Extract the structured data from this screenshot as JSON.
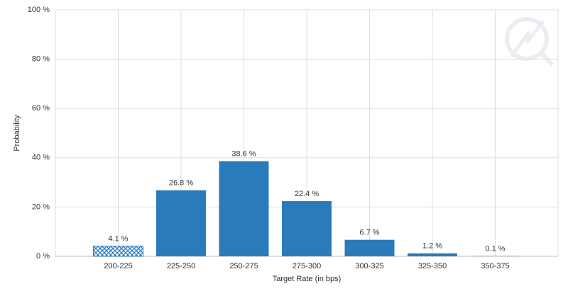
{
  "chart_data": {
    "type": "bar",
    "x_label": "Target Rate (in bps)",
    "y_label": "Probability",
    "categories": [
      "200-225",
      "225-250",
      "250-275",
      "275-300",
      "300-325",
      "325-350",
      "350-375"
    ],
    "values": [
      4.1,
      26.8,
      38.6,
      22.4,
      6.7,
      1.2,
      0.1
    ],
    "value_labels": [
      "4.1 %",
      "26.8 %",
      "38.6 %",
      "22.4 %",
      "6.7 %",
      "1.2 %",
      "0.1 %"
    ],
    "hatch": [
      true,
      false,
      false,
      false,
      false,
      false,
      false
    ],
    "color": "#2b7bba",
    "ylim": [
      0,
      100
    ],
    "yticks": [
      {
        "value": 0,
        "label": "0 %"
      },
      {
        "value": 20,
        "label": "20 %"
      },
      {
        "value": 40,
        "label": "40 %"
      },
      {
        "value": 60,
        "label": "60 %"
      },
      {
        "value": 80,
        "label": "80 %"
      },
      {
        "value": 100,
        "label": "100 %"
      }
    ],
    "grid": true
  }
}
